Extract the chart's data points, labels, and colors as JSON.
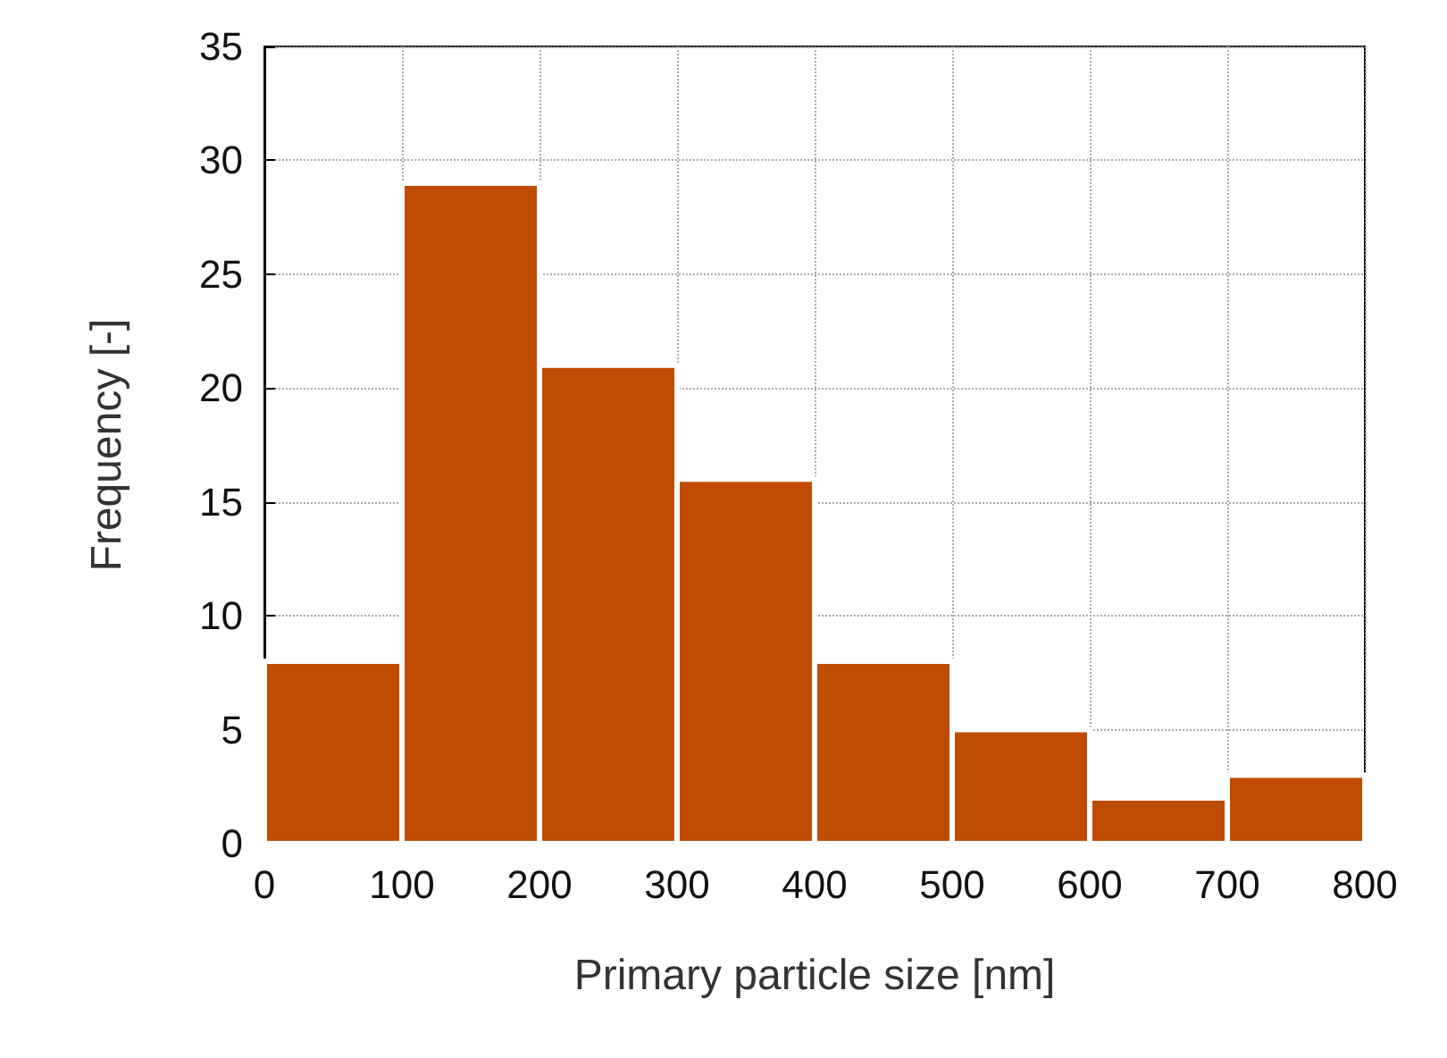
{
  "chart_data": {
    "type": "histogram",
    "xlabel": "Primary particle size [nm]",
    "ylabel": "Frequency [-]",
    "bins": [
      0,
      100,
      200,
      300,
      400,
      500,
      600,
      700,
      800
    ],
    "values": [
      8,
      29,
      21,
      16,
      8,
      5,
      2,
      3
    ],
    "color": "#bf4c00",
    "xlim": [
      0,
      800
    ],
    "xticks": [
      0,
      100,
      200,
      300,
      400,
      500,
      600,
      700,
      800
    ],
    "ylim": [
      0,
      35
    ],
    "yticks": [
      0,
      5,
      10,
      15,
      20,
      25,
      30,
      35
    ],
    "grid": true
  }
}
